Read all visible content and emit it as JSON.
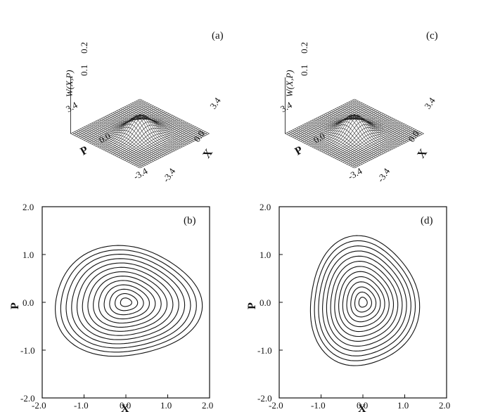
{
  "figure": {
    "panel_a": {
      "label": "(a)",
      "z_label": "W(X,P)",
      "z_ticks": [
        "0.1",
        "0.2"
      ],
      "x_label": "X",
      "p_label": "P",
      "x_ticks": [
        "3.4",
        "0.0",
        "-3.4"
      ],
      "p_ticks": [
        "3.4",
        "0.0",
        "-3.4"
      ],
      "squeeze_x": 1.0,
      "squeeze_p": 0.78
    },
    "panel_c": {
      "label": "(c)",
      "z_label": "W(X,P)",
      "z_ticks": [
        "0.1",
        "0.2"
      ],
      "x_label": "X",
      "p_label": "P",
      "x_ticks": [
        "3.4",
        "0.0",
        "-3.4"
      ],
      "p_ticks": [
        "3.4",
        "0.0",
        "-3.4"
      ],
      "squeeze_x": 0.85,
      "squeeze_p": 0.92
    },
    "panel_b": {
      "label": "(b)",
      "x_label": "X",
      "y_label": "P",
      "x_ticks": [
        "-2.0",
        "-1.0",
        "0.0",
        "1.0",
        "2.0"
      ],
      "y_ticks": [
        "2.0",
        "1.0",
        "0.0",
        "-1.0",
        "-2.0"
      ]
    },
    "panel_d": {
      "label": "(d)",
      "x_label": "X",
      "y_label": "P",
      "x_ticks": [
        "-2.0",
        "-1.0",
        "0.0",
        "1.0",
        "2.0"
      ],
      "y_ticks": [
        "2.0",
        "1.0",
        "0.0",
        "-1.0",
        "-2.0"
      ]
    }
  },
  "chart_data": [
    {
      "type": "surface",
      "panel": "a",
      "x_range": [
        -3.4,
        3.4
      ],
      "p_range": [
        -3.4,
        3.4
      ],
      "z_ticks": [
        0.1,
        0.2
      ]
    },
    {
      "type": "contour",
      "panel": "b",
      "xlim": [
        -2.0,
        2.0
      ],
      "ylim": [
        -2.0,
        2.0
      ],
      "center": [
        0.0,
        0.0
      ],
      "levels": 13,
      "outer_half_width_x": 1.75,
      "outer_half_width_p": 1.15
    },
    {
      "type": "surface",
      "panel": "c",
      "x_range": [
        -3.4,
        3.4
      ],
      "p_range": [
        -3.4,
        3.4
      ],
      "z_ticks": [
        0.1,
        0.2
      ]
    },
    {
      "type": "contour",
      "panel": "d",
      "xlim": [
        -2.0,
        2.0
      ],
      "ylim": [
        -2.0,
        2.0
      ],
      "center": [
        0.0,
        0.0
      ],
      "levels": 13,
      "outer_half_width_x": 1.3,
      "outer_half_width_p": 1.35
    }
  ]
}
